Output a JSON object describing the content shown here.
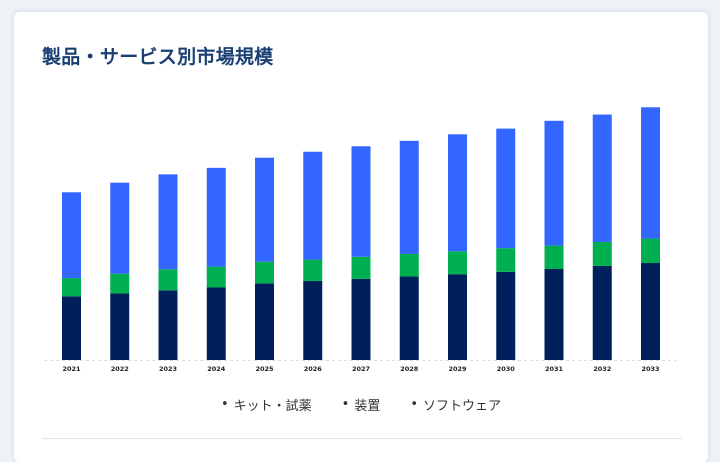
{
  "card": {
    "title": "製品・サービス別市場規模"
  },
  "chart_data": {
    "type": "bar",
    "stacked": true,
    "categories": [
      "2021",
      "2022",
      "2023",
      "2024",
      "2025",
      "2026",
      "2027",
      "2028",
      "2029",
      "2030",
      "2031",
      "2032",
      "2033"
    ],
    "series": [
      {
        "name": "装置",
        "color": "#00205b",
        "values": [
          24.5,
          25.6,
          26.8,
          27.9,
          29.5,
          30.4,
          31.2,
          32.1,
          33.0,
          33.9,
          35.0,
          36.2,
          37.3
        ]
      },
      {
        "name": "キット・試薬",
        "color": "#00b050",
        "values": [
          7.0,
          7.6,
          8.1,
          8.0,
          8.3,
          8.2,
          8.5,
          8.7,
          8.8,
          9.1,
          9.0,
          9.2,
          9.4
        ]
      },
      {
        "name": "ソフトウェア",
        "color": "#3366ff",
        "values": [
          33.0,
          35.0,
          36.5,
          38.0,
          40.0,
          41.5,
          42.5,
          43.5,
          45.0,
          46.0,
          48.0,
          49.0,
          50.5
        ]
      }
    ],
    "ylim": [
      0,
      100
    ],
    "grid": false,
    "legend_position": "bottom",
    "legend": [
      {
        "label": "キット・試薬",
        "marker": "•"
      },
      {
        "label": "装置",
        "marker": "•"
      },
      {
        "label": "ソフトウェア",
        "marker": "•"
      }
    ]
  }
}
